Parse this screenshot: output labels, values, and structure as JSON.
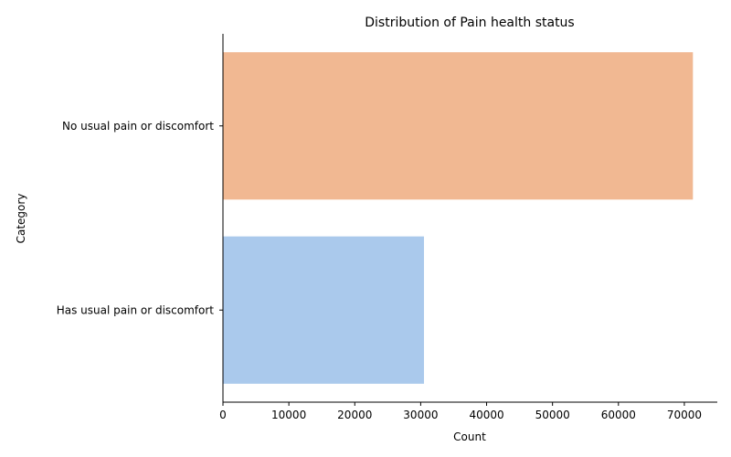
{
  "chart_data": {
    "type": "bar",
    "orientation": "horizontal",
    "title": "Distribution of Pain health status",
    "xlabel": "Count",
    "ylabel": "Category",
    "categories": [
      "No usual pain or discomfort",
      "Has usual pain or discomfort"
    ],
    "values": [
      71300,
      30500
    ],
    "colors": [
      "#f1b892",
      "#aac9ec"
    ],
    "xlim": [
      0,
      75000
    ],
    "xticks": [
      0,
      10000,
      20000,
      30000,
      40000,
      50000,
      60000,
      70000
    ],
    "grid": false,
    "legend": "none"
  }
}
